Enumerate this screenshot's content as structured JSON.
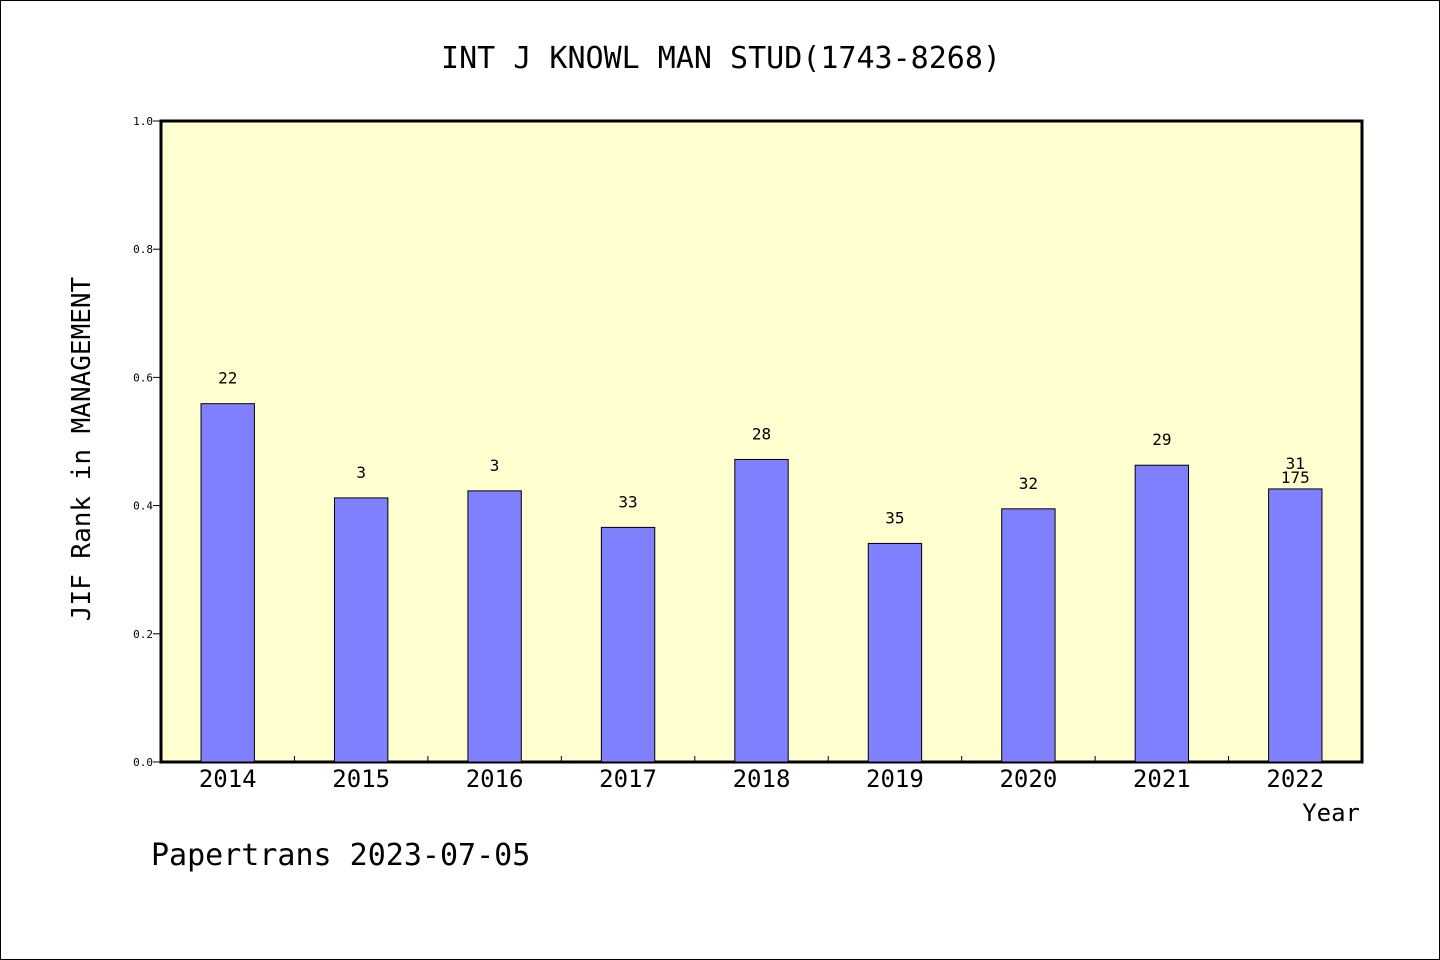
{
  "chart_data": {
    "type": "bar",
    "title": "INT J KNOWL MAN STUD(1743-8268)",
    "xlabel": "Year",
    "ylabel": "JIF Rank in MANAGEMENT",
    "ylim": [
      0,
      1.0
    ],
    "yticks": [
      "0.0",
      "0.2",
      "0.4",
      "0.6",
      "0.8",
      "1.0"
    ],
    "grid": false,
    "legend": "none",
    "categories": [
      "2014",
      "2015",
      "2016",
      "2017",
      "2018",
      "2019",
      "2020",
      "2021",
      "2022"
    ],
    "values": [
      0.559,
      0.412,
      0.423,
      0.366,
      0.472,
      0.341,
      0.395,
      0.463,
      0.426
    ],
    "data_labels": [
      "22",
      "3",
      "3",
      "33",
      "28",
      "35",
      "32",
      "29",
      "31"
    ],
    "extra_labels": [
      {
        "category": "2022",
        "text": "175"
      }
    ],
    "colors": {
      "bar_fill": "#8080ff",
      "plot_background": "#ffffd0",
      "axis": "#000000"
    }
  },
  "footer": {
    "source": "Papertrans 2023-07-05"
  }
}
